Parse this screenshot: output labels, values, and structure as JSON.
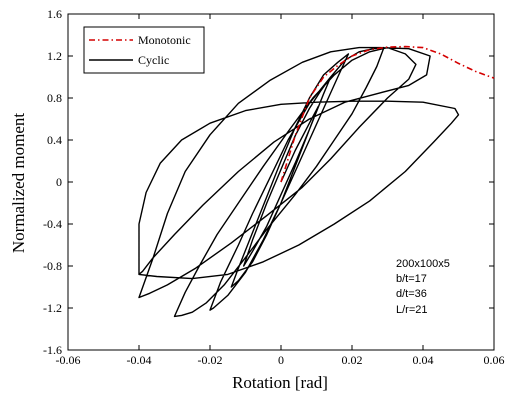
{
  "chart_data": {
    "type": "line",
    "xlabel": "Rotation [rad]",
    "ylabel": "Normalized moment",
    "xlim": [
      -0.06,
      0.06
    ],
    "ylim": [
      -1.6,
      1.6
    ],
    "x_ticks": [
      "-0.06",
      "-0.04",
      "-0.02",
      "0",
      "0.02",
      "0.04",
      "0.06"
    ],
    "x_tick_values": [
      -0.06,
      -0.04,
      -0.02,
      0,
      0.02,
      0.04,
      0.06
    ],
    "y_ticks": [
      "-1.6",
      "-1.2",
      "-0.8",
      "-0.4",
      "0",
      "0.4",
      "0.8",
      "1.2",
      "1.6"
    ],
    "y_tick_values": [
      -1.6,
      -1.2,
      -0.8,
      -0.4,
      0,
      0.4,
      0.8,
      1.2,
      1.6
    ],
    "grid": false,
    "legend_position": "top-left",
    "annotations": [
      "200x100x5",
      "b/t=17",
      "d/t=36",
      "L/r=21"
    ],
    "series": [
      {
        "name": "Monotonic",
        "color": "#d40000",
        "style": "dash-dot",
        "points": [
          [
            0,
            0
          ],
          [
            0.004,
            0.44
          ],
          [
            0.008,
            0.8
          ],
          [
            0.012,
            1.0
          ],
          [
            0.016,
            1.11
          ],
          [
            0.02,
            1.2
          ],
          [
            0.025,
            1.26
          ],
          [
            0.03,
            1.285
          ],
          [
            0.035,
            1.29
          ],
          [
            0.04,
            1.28
          ],
          [
            0.045,
            1.22
          ],
          [
            0.05,
            1.13
          ],
          [
            0.055,
            1.05
          ],
          [
            0.06,
            0.99
          ]
        ]
      },
      {
        "name": "Cyclic",
        "color": "#000000",
        "style": "solid",
        "points": [
          [
            0,
            0
          ],
          [
            0.004,
            0.3
          ],
          [
            0.008,
            0.56
          ],
          [
            0.0105,
            0.72
          ],
          [
            0.008,
            0.5
          ],
          [
            0.004,
            0.18
          ],
          [
            0,
            -0.12
          ],
          [
            -0.004,
            -0.42
          ],
          [
            -0.008,
            -0.66
          ],
          [
            -0.0105,
            -0.8
          ],
          [
            -0.008,
            -0.55
          ],
          [
            -0.004,
            -0.2
          ],
          [
            0,
            0.12
          ],
          [
            0.004,
            0.44
          ],
          [
            0.008,
            0.7
          ],
          [
            0.011,
            0.86
          ],
          [
            0.014,
            1.0
          ],
          [
            0.012,
            0.84
          ],
          [
            0.008,
            0.5
          ],
          [
            0.004,
            0.15
          ],
          [
            0,
            -0.2
          ],
          [
            -0.004,
            -0.5
          ],
          [
            -0.008,
            -0.76
          ],
          [
            -0.012,
            -0.94
          ],
          [
            -0.014,
            -1.0
          ],
          [
            -0.012,
            -0.82
          ],
          [
            -0.008,
            -0.48
          ],
          [
            -0.004,
            -0.14
          ],
          [
            0,
            0.2
          ],
          [
            0.004,
            0.52
          ],
          [
            0.008,
            0.8
          ],
          [
            0.012,
            1.02
          ],
          [
            0.016,
            1.14
          ],
          [
            0.019,
            1.22
          ],
          [
            0.016,
            1.0
          ],
          [
            0.012,
            0.7
          ],
          [
            0.008,
            0.4
          ],
          [
            0.004,
            0.1
          ],
          [
            0,
            -0.2
          ],
          [
            -0.005,
            -0.55
          ],
          [
            -0.01,
            -0.86
          ],
          [
            -0.015,
            -1.08
          ],
          [
            -0.019,
            -1.2
          ],
          [
            -0.02,
            -1.22
          ],
          [
            -0.017,
            -0.95
          ],
          [
            -0.012,
            -0.6
          ],
          [
            -0.008,
            -0.3
          ],
          [
            -0.003,
            0.05
          ],
          [
            0.002,
            0.4
          ],
          [
            0.008,
            0.75
          ],
          [
            0.014,
            1.0
          ],
          [
            0.018,
            1.16
          ],
          [
            0.022,
            1.24
          ],
          [
            0.026,
            1.27
          ],
          [
            0.029,
            1.28
          ],
          [
            0.027,
            1.1
          ],
          [
            0.024,
            0.9
          ],
          [
            0.02,
            0.65
          ],
          [
            0.015,
            0.4
          ],
          [
            0.01,
            0.15
          ],
          [
            0.004,
            -0.12
          ],
          [
            -0.004,
            -0.45
          ],
          [
            -0.01,
            -0.72
          ],
          [
            -0.016,
            -0.98
          ],
          [
            -0.021,
            -1.15
          ],
          [
            -0.025,
            -1.24
          ],
          [
            -0.028,
            -1.27
          ],
          [
            -0.03,
            -1.28
          ],
          [
            -0.027,
            -1.05
          ],
          [
            -0.023,
            -0.8
          ],
          [
            -0.018,
            -0.5
          ],
          [
            -0.012,
            -0.2
          ],
          [
            -0.005,
            0.15
          ],
          [
            0.002,
            0.48
          ],
          [
            0.009,
            0.8
          ],
          [
            0.015,
            1.02
          ],
          [
            0.02,
            1.16
          ],
          [
            0.025,
            1.24
          ],
          [
            0.03,
            1.28
          ],
          [
            0.035,
            1.22
          ],
          [
            0.038,
            1.12
          ],
          [
            0.036,
            0.98
          ],
          [
            0.03,
            0.8
          ],
          [
            0.022,
            0.52
          ],
          [
            0.014,
            0.22
          ],
          [
            0.006,
            -0.05
          ],
          [
            -0.004,
            -0.32
          ],
          [
            -0.014,
            -0.58
          ],
          [
            -0.024,
            -0.82
          ],
          [
            -0.032,
            -0.98
          ],
          [
            -0.037,
            -1.06
          ],
          [
            -0.04,
            -1.1
          ],
          [
            -0.036,
            -0.72
          ],
          [
            -0.032,
            -0.3
          ],
          [
            -0.027,
            0.1
          ],
          [
            -0.02,
            0.45
          ],
          [
            -0.012,
            0.75
          ],
          [
            -0.003,
            0.97
          ],
          [
            0.006,
            1.14
          ],
          [
            0.014,
            1.24
          ],
          [
            0.022,
            1.28
          ],
          [
            0.028,
            1.28
          ],
          [
            0.036,
            1.27
          ],
          [
            0.042,
            1.2
          ],
          [
            0.041,
            1.02
          ],
          [
            0.036,
            0.92
          ],
          [
            0.028,
            0.85
          ],
          [
            0.018,
            0.76
          ],
          [
            0.008,
            0.6
          ],
          [
            -0.002,
            0.38
          ],
          [
            -0.012,
            0.1
          ],
          [
            -0.022,
            -0.22
          ],
          [
            -0.03,
            -0.5
          ],
          [
            -0.036,
            -0.72
          ],
          [
            -0.039,
            -0.85
          ],
          [
            -0.04,
            -0.88
          ],
          [
            -0.035,
            -0.9
          ],
          [
            -0.025,
            -0.92
          ],
          [
            -0.015,
            -0.88
          ],
          [
            -0.005,
            -0.76
          ],
          [
            0.005,
            -0.6
          ],
          [
            0.015,
            -0.4
          ],
          [
            0.025,
            -0.18
          ],
          [
            0.035,
            0.1
          ],
          [
            0.043,
            0.38
          ],
          [
            0.048,
            0.56
          ],
          [
            0.05,
            0.64
          ],
          [
            0.049,
            0.7
          ],
          [
            0.04,
            0.76
          ],
          [
            0.03,
            0.77
          ],
          [
            0.02,
            0.77
          ],
          [
            0.01,
            0.76
          ],
          [
            0,
            0.74
          ],
          [
            -0.01,
            0.68
          ],
          [
            -0.02,
            0.56
          ],
          [
            -0.028,
            0.4
          ],
          [
            -0.034,
            0.18
          ],
          [
            -0.038,
            -0.1
          ],
          [
            -0.04,
            -0.4
          ],
          [
            -0.04,
            -0.7
          ],
          [
            -0.04,
            -0.88
          ]
        ]
      }
    ]
  }
}
